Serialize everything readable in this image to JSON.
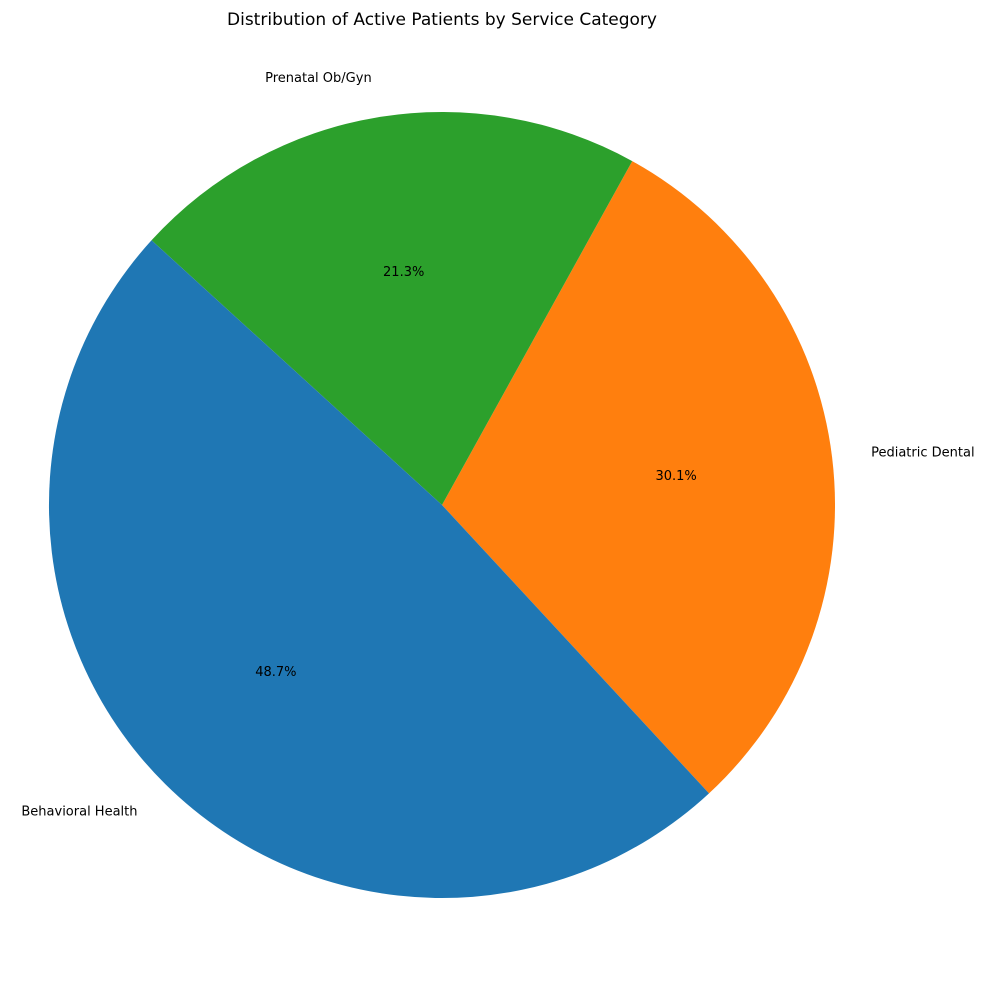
{
  "chart_data": {
    "type": "pie",
    "title": "Distribution of Active Patients by Service Category",
    "categories": [
      "Pediatric Dental",
      "Prenatal Ob/Gyn",
      "Behavioral Health"
    ],
    "values": [
      30.1,
      21.3,
      48.7
    ],
    "percent_labels": [
      "30.1%",
      "21.3%",
      "48.7%"
    ],
    "colors": [
      "#ff7f0e",
      "#2ca02c",
      "#1f77b4"
    ],
    "start_angle_deg": -47.2,
    "direction": "counterclockwise",
    "legend": "none"
  }
}
